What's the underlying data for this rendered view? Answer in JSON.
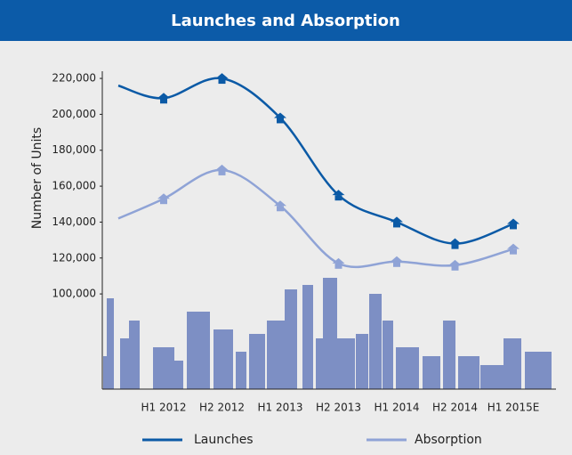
{
  "chart_data": {
    "type": "line",
    "title": "Launches and Absorption",
    "y_label": "Number of Units",
    "categories": [
      null,
      "H1 2012",
      "H2 2012",
      "H1 2013",
      "H2 2013",
      "H1 2014",
      "H2 2014",
      "H1 2015E"
    ],
    "series": [
      {
        "name": "Launches",
        "color": "#0b5aa6",
        "values": [
          216000,
          209000,
          220000,
          198000,
          155000,
          140000,
          128000,
          139000
        ]
      },
      {
        "name": "Absorption",
        "color": "#8fa3d6",
        "values": [
          142000,
          153000,
          169000,
          149000,
          117000,
          118000,
          116000,
          125000
        ]
      }
    ],
    "ylim": [
      47000,
      224000
    ],
    "yticks": [
      {
        "value": 100000,
        "label": "100,000"
      },
      {
        "value": 120000,
        "label": "120,000"
      },
      {
        "value": 140000,
        "label": "140,000"
      },
      {
        "value": 160000,
        "label": "160,000"
      },
      {
        "value": 180000,
        "label": "180,000"
      },
      {
        "value": 200000,
        "label": "200,000"
      },
      {
        "value": 220000,
        "label": "220,000"
      }
    ],
    "grid": false
  }
}
